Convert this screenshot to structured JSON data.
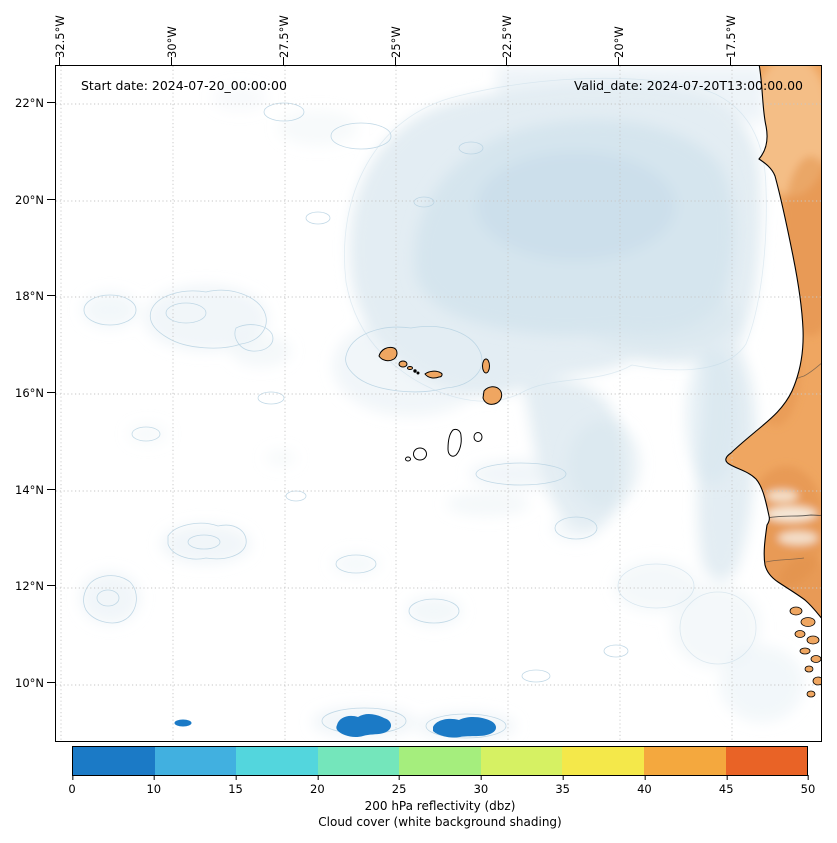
{
  "header": {
    "start_date": "Start date: 2024-07-20_00:00:00",
    "valid_date": "Valid_date: 2024-07-20T13:00:00.00"
  },
  "axes": {
    "longitude_ticks": [
      "32.5°W",
      "30°W",
      "27.5°W",
      "25°W",
      "22.5°W",
      "20°W",
      "17.5°W"
    ],
    "latitude_ticks": [
      "22°N",
      "20°N",
      "18°N",
      "16°N",
      "14°N",
      "12°N",
      "10°N"
    ]
  },
  "colorbar": {
    "ticks": [
      "0",
      "10",
      "15",
      "20",
      "25",
      "30",
      "35",
      "40",
      "45",
      "50"
    ],
    "boundaries": [
      0,
      10,
      15,
      20,
      25,
      30,
      35,
      40,
      45,
      50
    ],
    "colors": [
      "#1b7ac6",
      "#41b0e0",
      "#53d6dd",
      "#74e6bb",
      "#a5ee7d",
      "#d6f163",
      "#f4e84a",
      "#f4a83e",
      "#e96326"
    ],
    "label_line1": "200 hPa reflectivity (dbz)",
    "label_line2": "Cloud cover (white background shading)"
  },
  "colors": {
    "land": "#efa661",
    "land_dark": "#e18f49",
    "land_light": "#f6c795",
    "cloud_light": "#e3edf3",
    "cloud_mid": "#d5e5ee",
    "cloud_deep": "#cadeea",
    "cloud_contour": "#b7d2e2",
    "reflectivity_blue": "#1b7ac6",
    "coastline": "#000000",
    "grid": "#c6c6c6"
  },
  "chart_data": {
    "type": "heatmap",
    "title": "",
    "x_axis": {
      "label": "Longitude",
      "tick_labels": [
        "32.5°W",
        "30°W",
        "27.5°W",
        "25°W",
        "22.5°W",
        "20°W",
        "17.5°W"
      ],
      "range": [
        "32.6°W",
        "15.5°W"
      ]
    },
    "y_axis": {
      "label": "Latitude",
      "tick_labels": [
        "22°N",
        "20°N",
        "18°N",
        "16°N",
        "14°N",
        "12°N",
        "10°N"
      ],
      "range": [
        "8.9°N",
        "22.8°N"
      ]
    },
    "grid": "dotted",
    "annotations": [
      "Start date: 2024-07-20_00:00:00",
      "Valid_date: 2024-07-20T13:00:00.00"
    ],
    "colorbar": {
      "title": "200 hPa reflectivity (dbz)",
      "subtitle": "Cloud cover (white background shading)",
      "unit": "dbz",
      "boundaries": [
        0,
        10,
        15,
        20,
        25,
        30,
        35,
        40,
        45,
        50
      ],
      "colors": [
        "#1b7ac6",
        "#41b0e0",
        "#53d6dd",
        "#74e6bb",
        "#a5ee7d",
        "#d6f163",
        "#f4e84a",
        "#f4a83e",
        "#e96326"
      ],
      "orientation": "horizontal"
    },
    "fields": [
      {
        "name": "cloud cover",
        "style": "white background with pale blue-grey shading",
        "extent": "broad cloud shield over the ocean ~28°W–16°W and 13°N–23°N, densest ~24°W–18°W, 17°N–21.5°N; scattered small patches elsewhere"
      },
      {
        "name": "200 hPa reflectivity",
        "points": [
          {
            "lon_w": [
              26.3,
              25.1
            ],
            "lat_n": 9.2,
            "value_dbz": "0–10"
          },
          {
            "lon_w": [
              24.2,
              22.7
            ],
            "lat_n": 9.1,
            "value_dbz": "0–10"
          },
          {
            "lon_w": [
              30.0,
              29.6
            ],
            "lat_n": 9.2,
            "value_dbz": "0–10"
          }
        ]
      }
    ],
    "geography": [
      "West African coastline (Mauritania, Senegal, Gambia, Guinea-Bissau)",
      "Cape Verde islands"
    ]
  }
}
